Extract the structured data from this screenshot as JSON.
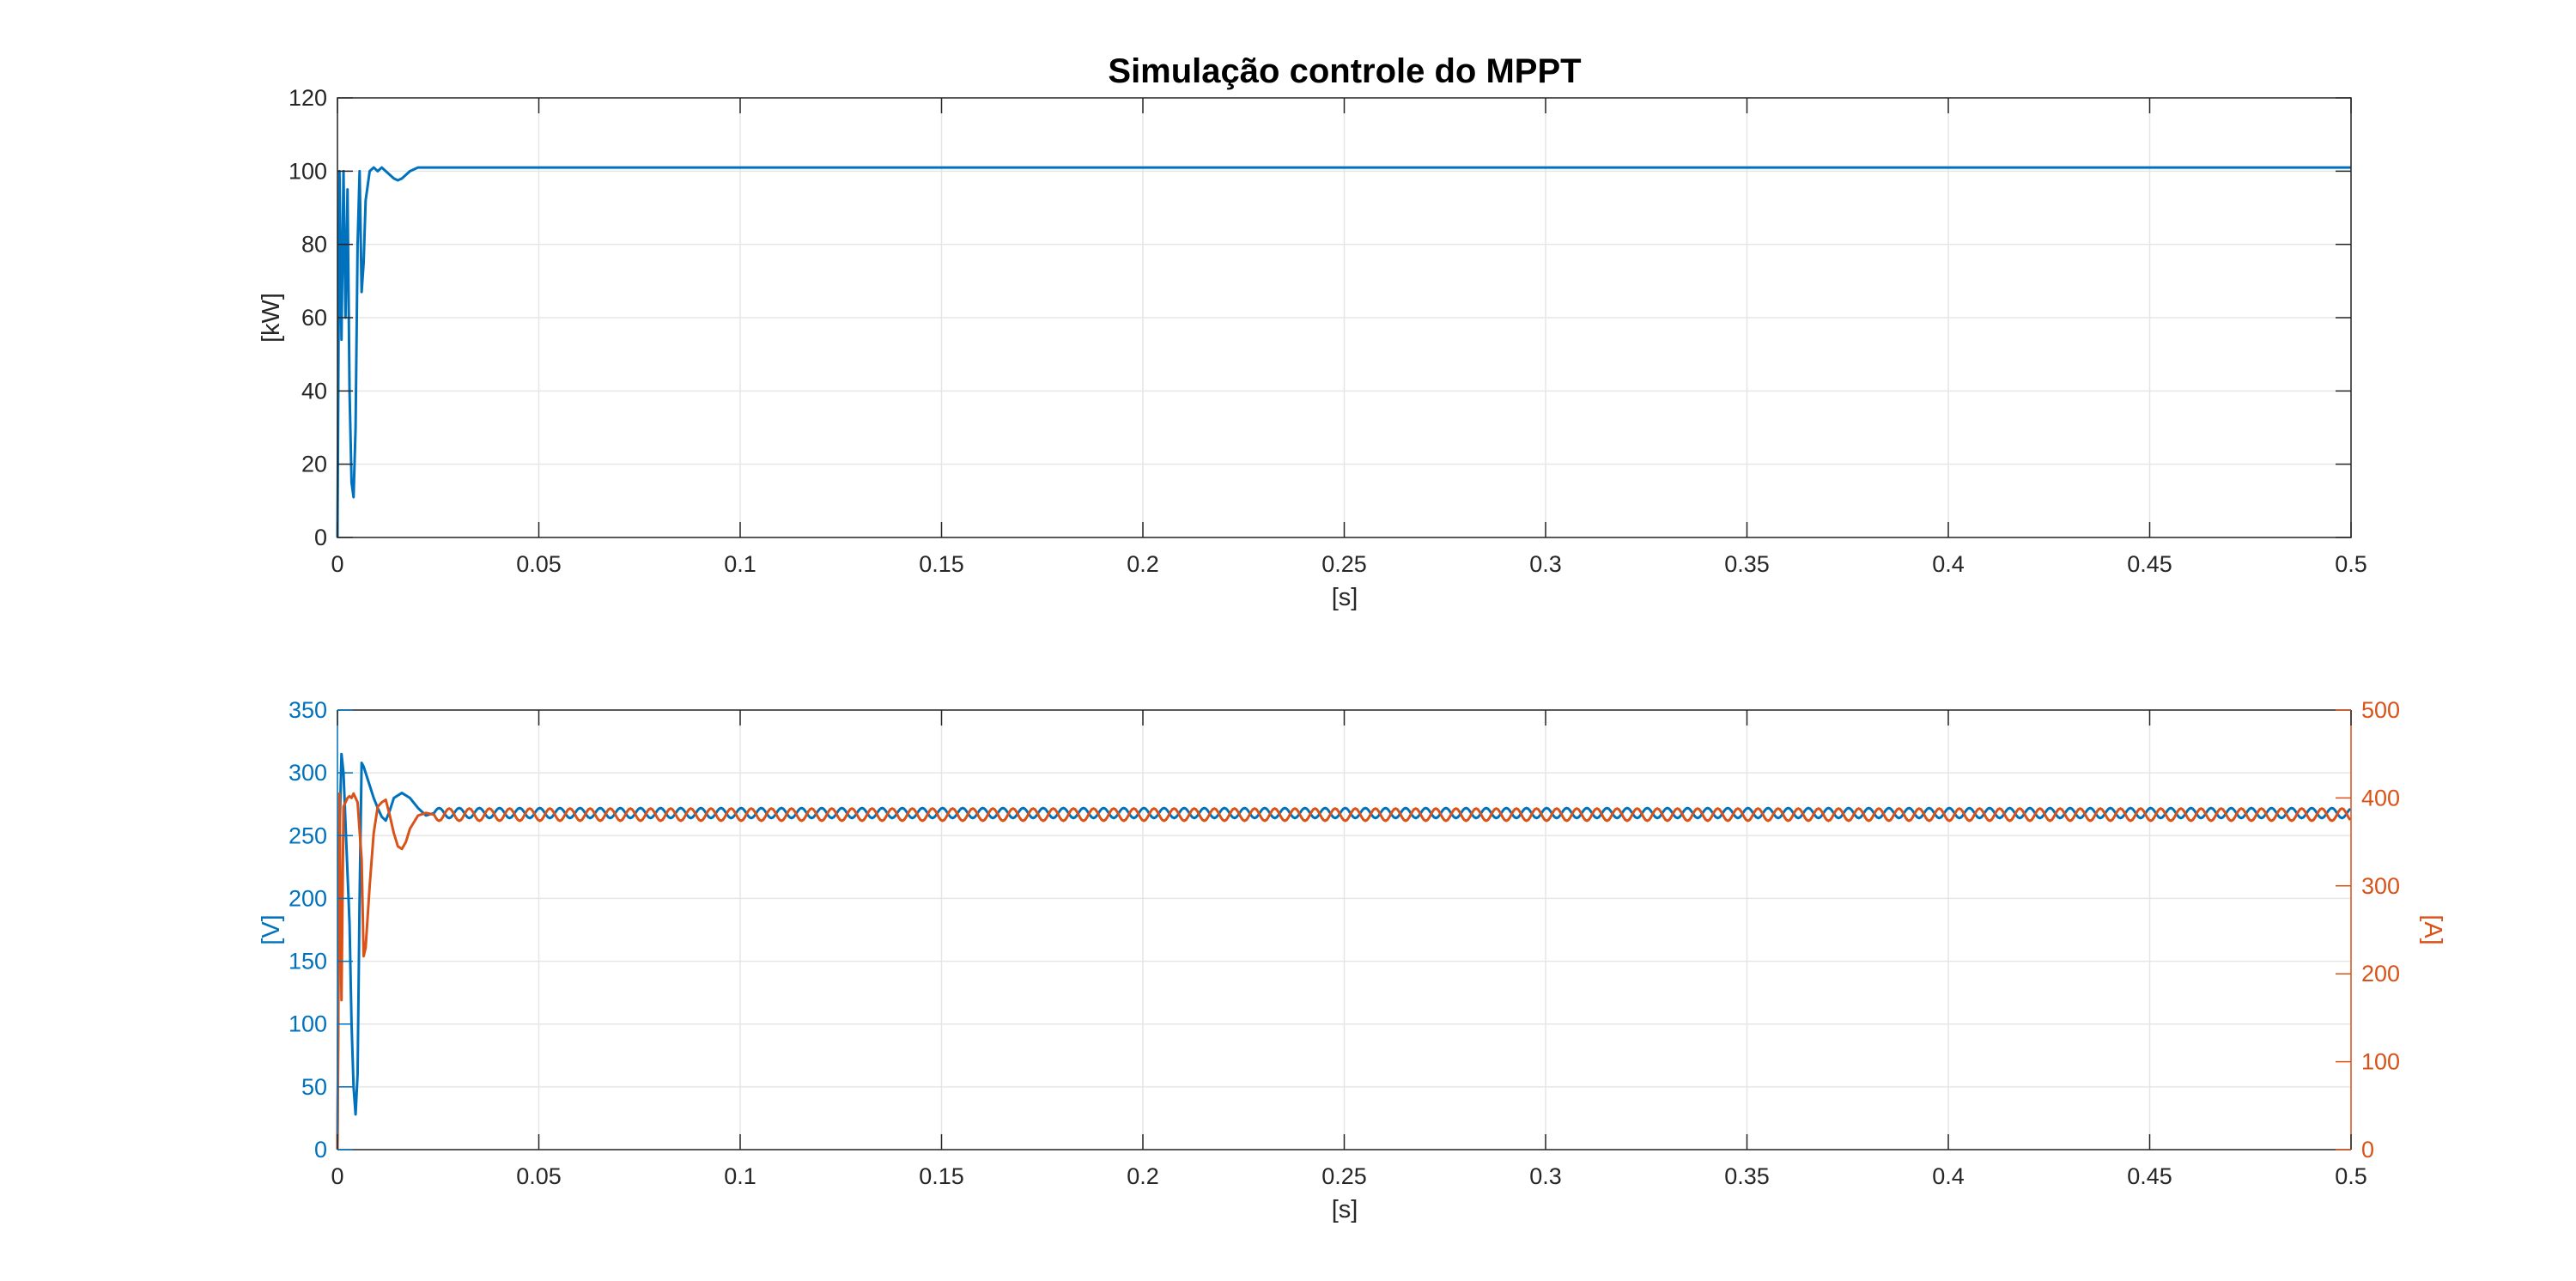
{
  "figure": {
    "title": "Simulação controle do MPPT"
  },
  "chart_data": [
    {
      "type": "line",
      "title": "Simulação controle do MPPT",
      "xlabel": "[s]",
      "ylabel": "[kW]",
      "xlim": [
        0,
        0.5
      ],
      "ylim": [
        0,
        120
      ],
      "xticks": [
        "0",
        "0.05",
        "0.1",
        "0.15",
        "0.2",
        "0.25",
        "0.3",
        "0.35",
        "0.4",
        "0.45",
        "0.5"
      ],
      "yticks": [
        "0",
        "20",
        "40",
        "60",
        "80",
        "100",
        "120"
      ],
      "grid": true,
      "series": [
        {
          "color": "#0072BD",
          "x": [
            0,
            0.0005,
            0.001,
            0.0015,
            0.002,
            0.0025,
            0.003,
            0.0035,
            0.004,
            0.0045,
            0.005,
            0.0055,
            0.006,
            0.0065,
            0.007,
            0.008,
            0.009,
            0.01,
            0.011,
            0.012,
            0.013,
            0.014,
            0.015,
            0.016,
            0.017,
            0.018,
            0.019,
            0.02,
            0.021,
            0.022,
            0.024,
            0.026,
            0.03,
            0.1,
            0.2,
            0.3,
            0.4,
            0.5
          ],
          "y": [
            0,
            100,
            54,
            100,
            60,
            95,
            40,
            15,
            11,
            30,
            80,
            100,
            67,
            75,
            92,
            100,
            101,
            100,
            101,
            100,
            99,
            98,
            97.5,
            98,
            99,
            100,
            100.5,
            101,
            101,
            101,
            101,
            101,
            101,
            101,
            101,
            101,
            101,
            101
          ]
        }
      ]
    },
    {
      "type": "line",
      "xlabel": "[s]",
      "ylabel_left": "[V]",
      "ylabel_right": "[A]",
      "xlim": [
        0,
        0.5
      ],
      "ylim_left": [
        0,
        350
      ],
      "ylim_right": [
        0,
        500
      ],
      "xticks": [
        "0",
        "0.05",
        "0.1",
        "0.15",
        "0.2",
        "0.25",
        "0.3",
        "0.35",
        "0.4",
        "0.45",
        "0.5"
      ],
      "yticks_left": [
        "0",
        "50",
        "100",
        "150",
        "200",
        "250",
        "300",
        "350"
      ],
      "yticks_right": [
        "0",
        "100",
        "200",
        "300",
        "400",
        "500"
      ],
      "grid": true,
      "series": [
        {
          "axis": "left",
          "color": "#0072BD",
          "x": [
            0,
            0.0005,
            0.001,
            0.0015,
            0.002,
            0.003,
            0.0035,
            0.004,
            0.0045,
            0.005,
            0.0055,
            0.006,
            0.0065,
            0.007,
            0.008,
            0.009,
            0.01,
            0.011,
            0.012,
            0.013,
            0.014,
            0.016,
            0.018,
            0.02,
            0.022,
            0.024
          ],
          "y": [
            0,
            250,
            315,
            300,
            260,
            180,
            100,
            50,
            28,
            60,
            200,
            308,
            305,
            300,
            290,
            280,
            272,
            265,
            262,
            270,
            280,
            284,
            280,
            272,
            266,
            268
          ],
          "osc_center": 268,
          "osc_amplitude": 4,
          "osc_period": 0.005,
          "osc_from": 0.024
        },
        {
          "axis": "right",
          "color": "#D95319",
          "x": [
            0,
            0.0005,
            0.001,
            0.0015,
            0.002,
            0.0025,
            0.003,
            0.0035,
            0.004,
            0.005,
            0.006,
            0.0065,
            0.007,
            0.008,
            0.009,
            0.01,
            0.011,
            0.012,
            0.013,
            0.014,
            0.015,
            0.016,
            0.017,
            0.018,
            0.02,
            0.022,
            0.024
          ],
          "y": [
            0,
            405,
            170,
            390,
            395,
            400,
            402,
            400,
            405,
            395,
            330,
            220,
            230,
            300,
            360,
            390,
            395,
            398,
            380,
            360,
            345,
            342,
            350,
            365,
            380,
            383,
            381
          ],
          "osc_center": 381,
          "osc_amplitude": 7,
          "osc_period": 0.005,
          "osc_from": 0.024,
          "osc_phase": 0.5
        }
      ]
    }
  ]
}
